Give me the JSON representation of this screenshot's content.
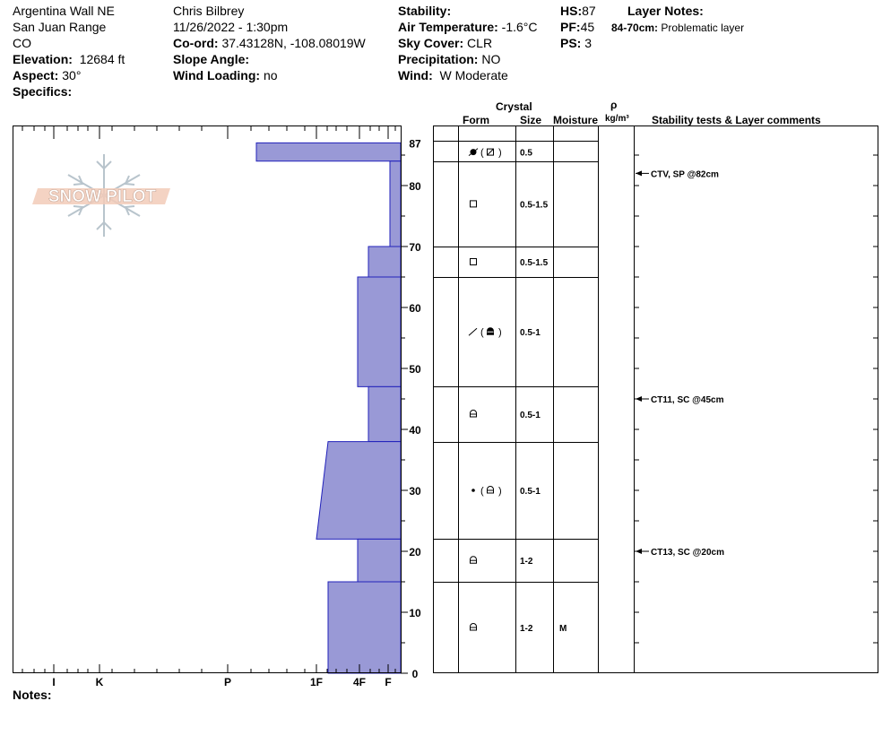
{
  "header": {
    "location": "Argentina Wall NE",
    "range": "San Juan Range",
    "state": "CO",
    "elevation_label": "Elevation:",
    "elevation_value": "12684 ft",
    "aspect_label": "Aspect:",
    "aspect_value": "30°",
    "specifics_label": "Specifics:",
    "observer": "Chris Bilbrey",
    "datetime": "11/26/2022 - 1:30pm",
    "coord_label": "Co-ord:",
    "coord_value": "37.43128N, -108.08019W",
    "slope_label": "Slope Angle:",
    "slope_value": "",
    "wind_loading_label": "Wind Loading:",
    "wind_loading_value": "no",
    "stability_label": "Stability:",
    "stability_value": "",
    "air_temp_label": "Air Temperature:",
    "air_temp_value": "-1.6°C",
    "sky_label": "Sky Cover:",
    "sky_value": "CLR",
    "precip_label": "Precipitation:",
    "precip_value": "NO",
    "wind_label": "Wind:",
    "wind_value": "W Moderate",
    "hs_label": "HS:",
    "hs_value": "87",
    "pf_label": "PF:",
    "pf_value": "45",
    "ps_label": "PS:",
    "ps_value": "3",
    "layer_notes_label": "Layer Notes:",
    "layer_note_range": "84-70cm:",
    "layer_note_text": "Problematic layer"
  },
  "logo_text": "SNOW PILOT",
  "columns": {
    "crystal": "Crystal",
    "form": "Form",
    "size": "Size",
    "moisture": "Moisture",
    "rho": "ρ",
    "density": "kg/m³",
    "tests": "Stability tests & Layer comments"
  },
  "notes_label": "Notes:",
  "colors": {
    "hardness_fill": "#9999d6",
    "hardness_stroke": "#2222bb"
  },
  "chart_data": {
    "type": "area",
    "title": "",
    "xlabel": "",
    "ylabel": "",
    "ylim": [
      0,
      90
    ],
    "y_ticks": [
      0,
      10,
      20,
      30,
      40,
      50,
      60,
      70,
      80,
      87
    ],
    "hardness_ticks": [
      "I",
      "K",
      "P",
      "1F",
      "4F",
      "F"
    ],
    "hardness_profile": [
      {
        "top": 87,
        "bottom": 84,
        "hardness_top": "P+",
        "hardness_bottom": "P+"
      },
      {
        "top": 84,
        "bottom": 70,
        "hardness_top": "F+",
        "hardness_bottom": "F+"
      },
      {
        "top": 70,
        "bottom": 65,
        "hardness_top": "4F-",
        "hardness_bottom": "4F-"
      },
      {
        "top": 65,
        "bottom": 47,
        "hardness_top": "4F+",
        "hardness_bottom": "4F+"
      },
      {
        "top": 47,
        "bottom": 38,
        "hardness_top": "4F-",
        "hardness_bottom": "4F-"
      },
      {
        "top": 38,
        "bottom": 22,
        "hardness_top": "1F+",
        "hardness_bottom": "1F"
      },
      {
        "top": 22,
        "bottom": 15,
        "hardness_top": "4F+",
        "hardness_bottom": "4F+"
      },
      {
        "top": 15,
        "bottom": 0,
        "hardness_top": "1F+",
        "hardness_bottom": "1F+"
      }
    ],
    "layers": [
      {
        "top": 87,
        "bottom": 84,
        "form_icon": "graupel-faceted-rounded-icon",
        "size": "0.5",
        "moisture": ""
      },
      {
        "top": 84,
        "bottom": 70,
        "form_icon": "faceted-crystal-icon",
        "size": "0.5-1.5",
        "moisture": ""
      },
      {
        "top": 70,
        "bottom": 65,
        "form_icon": "faceted-crystal-icon",
        "size": "0.5-1.5",
        "moisture": ""
      },
      {
        "top": 65,
        "bottom": 47,
        "form_icon": "decomposing-fragmented-depth-hoar-icon",
        "size": "0.5-1",
        "moisture": ""
      },
      {
        "top": 47,
        "bottom": 38,
        "form_icon": "depth-hoar-icon",
        "size": "0.5-1",
        "moisture": ""
      },
      {
        "top": 38,
        "bottom": 22,
        "form_icon": "rounded-depth-hoar-icon",
        "size": "0.5-1",
        "moisture": ""
      },
      {
        "top": 22,
        "bottom": 15,
        "form_icon": "depth-hoar-icon",
        "size": "1-2",
        "moisture": ""
      },
      {
        "top": 15,
        "bottom": 0,
        "form_icon": "depth-hoar-icon",
        "size": "1-2",
        "moisture": "M"
      }
    ],
    "stability_tests": [
      {
        "depth": 82,
        "text": "CTV, SP @82cm"
      },
      {
        "depth": 45,
        "text": "CT11, SC @45cm"
      },
      {
        "depth": 20,
        "text": "CT13, SC @20cm"
      }
    ]
  }
}
